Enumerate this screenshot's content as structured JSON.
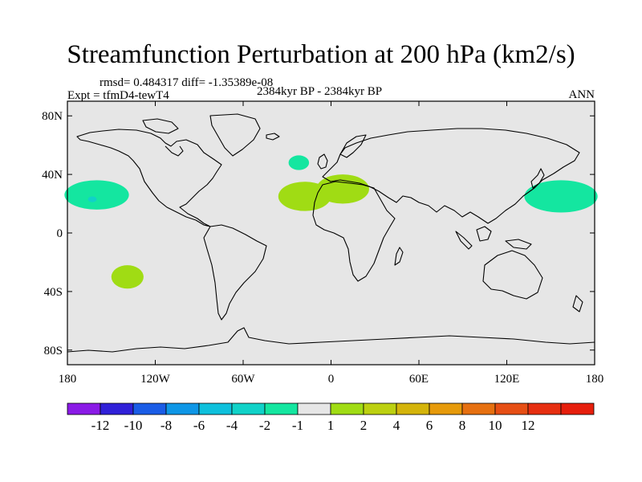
{
  "title": "Streamfunction Perturbation at 200 hPa (km2/s)",
  "stats_text": "rmsd= 0.484317  diff= -1.35389e-08",
  "experiment": "Expt = tfmD4-tewT4",
  "period": "2384kyr BP - 2384kyr BP",
  "season": "ANN",
  "colors": {
    "land_bg": "#e6e6e6",
    "coast": "#000000"
  },
  "chart_data": {
    "type": "heatmap",
    "projection": "cylindrical-equidistant",
    "xlim": [
      -180,
      180
    ],
    "ylim": [
      -90,
      90
    ],
    "x_ticks": [
      {
        "value": -180,
        "label": "180"
      },
      {
        "value": -120,
        "label": "120W"
      },
      {
        "value": -60,
        "label": "60W"
      },
      {
        "value": 0,
        "label": "0"
      },
      {
        "value": 60,
        "label": "60E"
      },
      {
        "value": 120,
        "label": "120E"
      },
      {
        "value": 180,
        "label": "180"
      }
    ],
    "y_ticks": [
      {
        "value": 80,
        "label": "80N"
      },
      {
        "value": 40,
        "label": "40N"
      },
      {
        "value": 0,
        "label": "0"
      },
      {
        "value": -40,
        "label": "40S"
      },
      {
        "value": -80,
        "label": "80S"
      }
    ],
    "colorbar": {
      "colors": [
        "#8a1ae6",
        "#3020d8",
        "#1a5ce6",
        "#0e96e6",
        "#0ec0dc",
        "#10d2c8",
        "#14e6a0",
        "#e6e6e6",
        "#a0dc14",
        "#bcd010",
        "#d4b40a",
        "#e69a0a",
        "#e67010",
        "#e64e14",
        "#e62e10",
        "#e61e0c"
      ],
      "labels": [
        "-12",
        "-10",
        "-8",
        "-6",
        "-4",
        "-2",
        "-1",
        "1",
        "2",
        "4",
        "6",
        "8",
        "10",
        "12"
      ]
    },
    "anomalies": [
      {
        "lon": -160,
        "lat": 26,
        "value": -1.5,
        "color": "#14e6a0",
        "rlon": 22,
        "rlat": 10
      },
      {
        "lon": -163,
        "lat": 23,
        "value": -2.5,
        "color": "#10d2c8",
        "rlon": 3,
        "rlat": 2
      },
      {
        "lon": -139,
        "lat": -30,
        "value": 1.5,
        "color": "#a0dc14",
        "rlon": 11,
        "rlat": 8
      },
      {
        "lon": -22,
        "lat": 48,
        "value": -1.5,
        "color": "#14e6a0",
        "rlon": 7,
        "rlat": 5
      },
      {
        "lon": -18,
        "lat": 25,
        "value": 1.5,
        "color": "#a0dc14",
        "rlon": 18,
        "rlat": 10
      },
      {
        "lon": 8,
        "lat": 30,
        "value": 1.5,
        "color": "#a0dc14",
        "rlon": 18,
        "rlat": 10
      },
      {
        "lon": 157,
        "lat": 25,
        "value": -1.5,
        "color": "#14e6a0",
        "rlon": 25,
        "rlat": 11
      }
    ]
  }
}
